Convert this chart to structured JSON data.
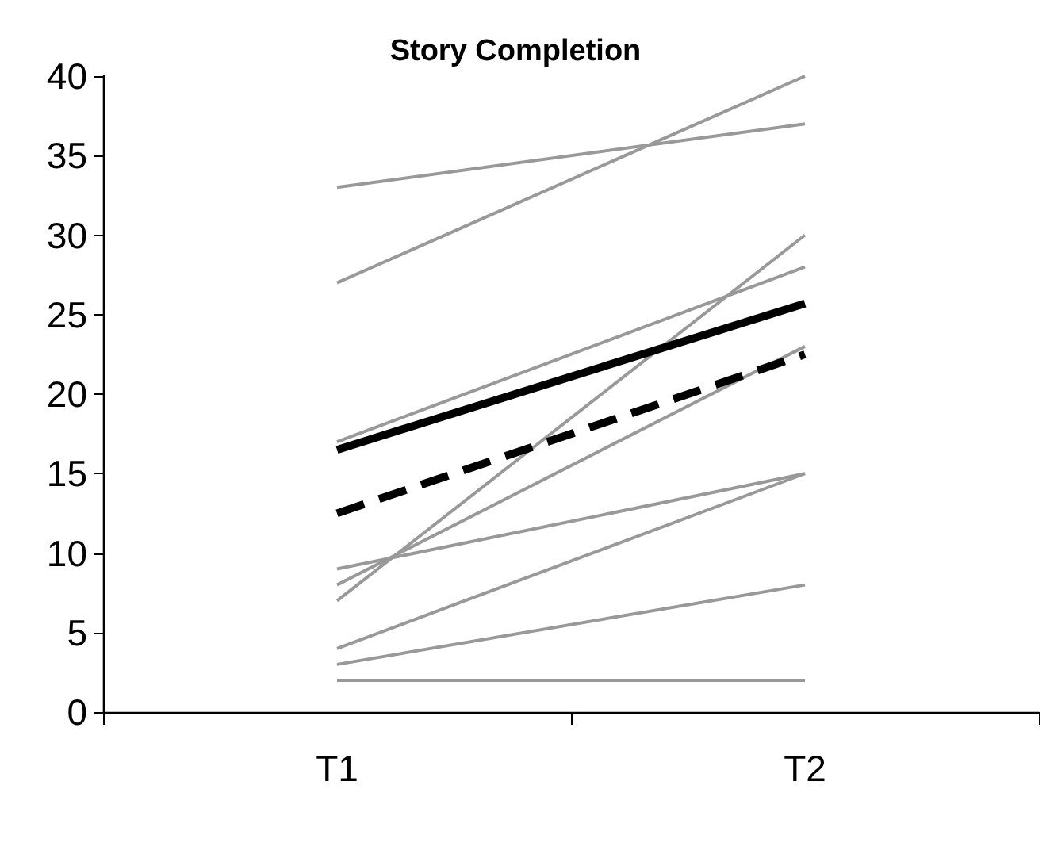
{
  "chart_data": {
    "type": "line",
    "title": "Story Completion",
    "categories": [
      "T1",
      "T2"
    ],
    "series": [
      {
        "color": "#999999",
        "values": [
          33,
          37
        ]
      },
      {
        "color": "#999999",
        "values": [
          27,
          40
        ]
      },
      {
        "color": "#999999",
        "values": [
          17,
          28
        ]
      },
      {
        "color": "#999999",
        "values": [
          9,
          15
        ]
      },
      {
        "color": "#999999",
        "values": [
          8,
          23
        ]
      },
      {
        "color": "#999999",
        "values": [
          7,
          30
        ]
      },
      {
        "color": "#999999",
        "values": [
          4,
          15
        ]
      },
      {
        "color": "#999999",
        "values": [
          3,
          8
        ]
      },
      {
        "color": "#999999",
        "values": [
          2,
          2
        ]
      },
      {
        "color": "#000000",
        "values": [
          16.5,
          25.7
        ]
      },
      {
        "color": "#000000",
        "values": [
          12.5,
          22.5
        ],
        "line_style": "dashed"
      }
    ],
    "ylim": [
      0,
      40
    ],
    "yticks": [
      0,
      5,
      10,
      15,
      20,
      25,
      30,
      35,
      40
    ],
    "grid": false,
    "marker": "none",
    "line_style": "solid"
  }
}
